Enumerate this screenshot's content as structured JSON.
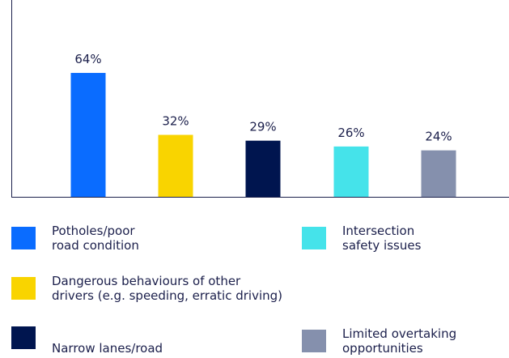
{
  "chart_data": {
    "type": "bar",
    "categories": [
      "Potholes/poor\nroad condition",
      "Dangerous behaviours of other\ndrivers (e.g. speeding, erratic driving)",
      "Narrow lanes/road",
      "Intersection\nsafety issues",
      "Limited overtaking\nopportunities"
    ],
    "values": [
      64,
      32,
      29,
      26,
      24
    ],
    "value_labels": [
      "64%",
      "32%",
      "29%",
      "26%",
      "24%"
    ],
    "colors": [
      "#0a6cff",
      "#f9d400",
      "#00154f",
      "#45e3ea",
      "#8590ad"
    ],
    "ylim": [
      0,
      100
    ]
  }
}
